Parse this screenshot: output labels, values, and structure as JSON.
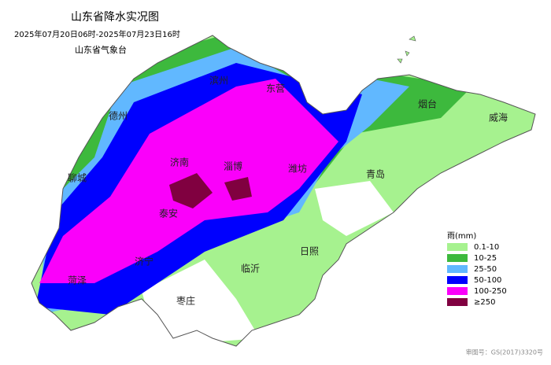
{
  "title": "山东省降水实况图",
  "subtitle": "2025年07月20日06时-2025年07月23日16时",
  "source": "山东省气象台",
  "cities": [
    "滨州",
    "东营",
    "烟台",
    "威海",
    "德州",
    "济南",
    "淄博",
    "潍坊",
    "聊城",
    "青岛",
    "泰安",
    "济宁",
    "临沂",
    "日照",
    "菏泽",
    "枣庄"
  ],
  "legend": {
    "title": "雨(mm)",
    "items": [
      {
        "label": "0.1-10",
        "color": "#a6f28f"
      },
      {
        "label": "10-25",
        "color": "#3db93d"
      },
      {
        "label": "25-50",
        "color": "#61b8ff"
      },
      {
        "label": "50-100",
        "color": "#0000fe"
      },
      {
        "label": "100-250",
        "color": "#fa00fa"
      },
      {
        "label": "≥250",
        "color": "#800040"
      }
    ]
  },
  "map_number": "审图号：GS(2017)3320号"
}
